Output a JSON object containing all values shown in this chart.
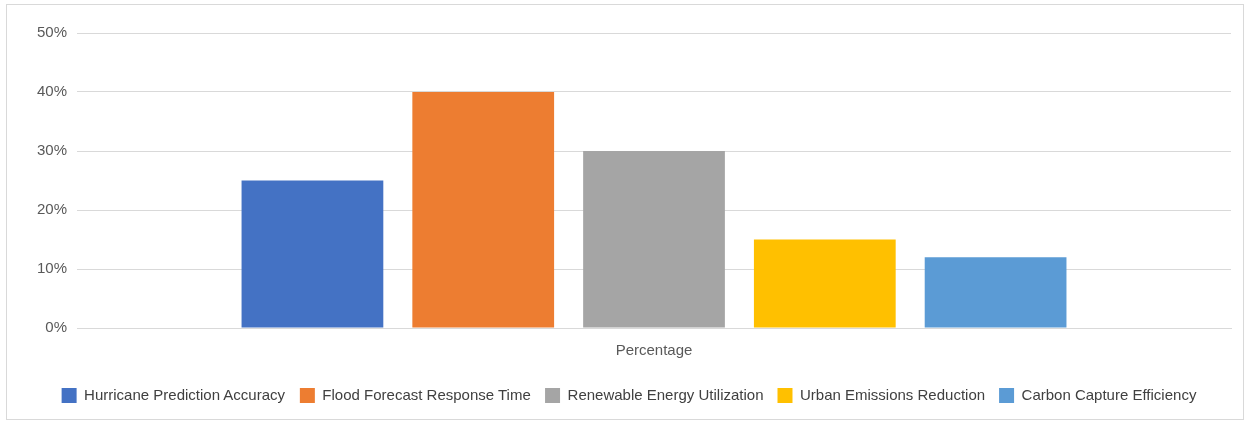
{
  "chart_data": {
    "type": "bar",
    "categories": [
      "Percentage"
    ],
    "series": [
      {
        "name": "Hurricane Prediction Accuracy",
        "color": "#4472c4",
        "values": [
          25
        ]
      },
      {
        "name": "Flood Forecast Response Time",
        "color": "#ed7d31",
        "values": [
          40
        ]
      },
      {
        "name": "Renewable Energy Utilization",
        "color": "#a5a5a5",
        "values": [
          30
        ]
      },
      {
        "name": "Urban Emissions Reduction",
        "color": "#ffc000",
        "values": [
          15
        ]
      },
      {
        "name": "Carbon Capture Efficiency",
        "color": "#5b9bd5",
        "values": [
          12
        ]
      }
    ],
    "ylim": [
      0,
      50
    ],
    "yticks": [
      {
        "value": 0,
        "label": "0%"
      },
      {
        "value": 10,
        "label": "10%"
      },
      {
        "value": 20,
        "label": "20%"
      },
      {
        "value": 30,
        "label": "30%"
      },
      {
        "value": 40,
        "label": "40%"
      },
      {
        "value": 50,
        "label": "50%"
      }
    ],
    "grid": "y",
    "legend": "bottom"
  }
}
